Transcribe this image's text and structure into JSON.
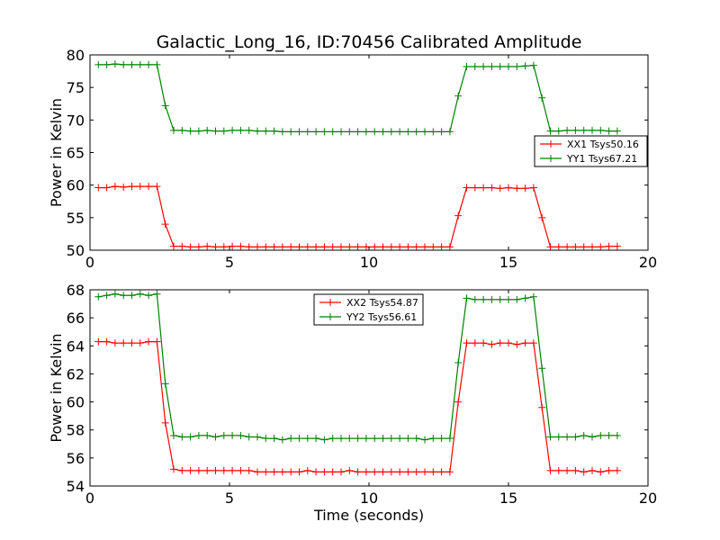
{
  "figure_title": "Galactic_Long_16, ID:70456 Calibrated Amplitude",
  "chart_data": [
    {
      "type": "line",
      "xlabel": "",
      "ylabel": "Power in Kelvin",
      "xlim": [
        0,
        20
      ],
      "ylim": [
        50,
        80
      ],
      "xticks": [
        0,
        5,
        10,
        15,
        20
      ],
      "yticks": [
        50,
        55,
        60,
        65,
        70,
        75,
        80
      ],
      "legend_position": "right",
      "x": [
        0.3,
        0.6,
        0.9,
        1.2,
        1.5,
        1.8,
        2.1,
        2.4,
        2.7,
        3.0,
        3.3,
        3.6,
        3.9,
        4.2,
        4.5,
        4.8,
        5.1,
        5.4,
        5.7,
        6.0,
        6.3,
        6.6,
        6.9,
        7.2,
        7.5,
        7.8,
        8.1,
        8.4,
        8.7,
        9.0,
        9.3,
        9.6,
        9.9,
        10.2,
        10.5,
        10.8,
        11.1,
        11.4,
        11.7,
        12.0,
        12.3,
        12.6,
        12.9,
        13.2,
        13.5,
        13.8,
        14.1,
        14.4,
        14.7,
        15.0,
        15.3,
        15.6,
        15.9,
        16.2,
        16.5,
        16.8,
        17.1,
        17.4,
        17.7,
        18.0,
        18.3,
        18.6,
        18.9
      ],
      "series": [
        {
          "name": "XX1 Tsys50.16",
          "color": "#ff0000",
          "values": [
            59.6,
            59.6,
            59.8,
            59.7,
            59.8,
            59.8,
            59.8,
            59.8,
            54.0,
            50.6,
            50.6,
            50.5,
            50.5,
            50.6,
            50.5,
            50.5,
            50.6,
            50.6,
            50.5,
            50.5,
            50.5,
            50.5,
            50.5,
            50.5,
            50.5,
            50.5,
            50.5,
            50.5,
            50.5,
            50.5,
            50.5,
            50.5,
            50.5,
            50.5,
            50.5,
            50.5,
            50.5,
            50.5,
            50.5,
            50.5,
            50.5,
            50.5,
            50.5,
            55.3,
            59.6,
            59.6,
            59.6,
            59.6,
            59.5,
            59.6,
            59.5,
            59.5,
            59.6,
            55.0,
            50.5,
            50.5,
            50.5,
            50.5,
            50.5,
            50.5,
            50.5,
            50.6,
            50.6
          ]
        },
        {
          "name": "YY1 Tsys67.21",
          "color": "#008000",
          "values": [
            78.5,
            78.5,
            78.6,
            78.5,
            78.5,
            78.5,
            78.5,
            78.5,
            72.2,
            68.4,
            68.4,
            68.3,
            68.3,
            68.4,
            68.3,
            68.3,
            68.4,
            68.4,
            68.4,
            68.3,
            68.3,
            68.3,
            68.2,
            68.2,
            68.2,
            68.2,
            68.2,
            68.2,
            68.2,
            68.2,
            68.2,
            68.2,
            68.2,
            68.2,
            68.2,
            68.2,
            68.2,
            68.2,
            68.2,
            68.2,
            68.2,
            68.2,
            68.2,
            73.7,
            78.2,
            78.2,
            78.2,
            78.2,
            78.2,
            78.2,
            78.2,
            78.3,
            78.4,
            73.4,
            68.3,
            68.3,
            68.4,
            68.4,
            68.4,
            68.4,
            68.4,
            68.3,
            68.3
          ]
        }
      ]
    },
    {
      "type": "line",
      "xlabel": "Time (seconds)",
      "ylabel": "Power in Kelvin",
      "xlim": [
        0,
        20
      ],
      "ylim": [
        54,
        68
      ],
      "xticks": [
        0,
        5,
        10,
        15,
        20
      ],
      "yticks": [
        54,
        56,
        58,
        60,
        62,
        64,
        66,
        68
      ],
      "legend_position": "upper center",
      "x": [
        0.3,
        0.6,
        0.9,
        1.2,
        1.5,
        1.8,
        2.1,
        2.4,
        2.7,
        3.0,
        3.3,
        3.6,
        3.9,
        4.2,
        4.5,
        4.8,
        5.1,
        5.4,
        5.7,
        6.0,
        6.3,
        6.6,
        6.9,
        7.2,
        7.5,
        7.8,
        8.1,
        8.4,
        8.7,
        9.0,
        9.3,
        9.6,
        9.9,
        10.2,
        10.5,
        10.8,
        11.1,
        11.4,
        11.7,
        12.0,
        12.3,
        12.6,
        12.9,
        13.2,
        13.5,
        13.8,
        14.1,
        14.4,
        14.7,
        15.0,
        15.3,
        15.6,
        15.9,
        16.2,
        16.5,
        16.8,
        17.1,
        17.4,
        17.7,
        18.0,
        18.3,
        18.6,
        18.9
      ],
      "series": [
        {
          "name": "XX2 Tsys54.87",
          "color": "#ff0000",
          "values": [
            64.3,
            64.3,
            64.2,
            64.2,
            64.2,
            64.2,
            64.3,
            64.3,
            58.5,
            55.2,
            55.1,
            55.1,
            55.1,
            55.1,
            55.1,
            55.1,
            55.1,
            55.1,
            55.1,
            55.0,
            55.0,
            55.0,
            55.0,
            55.0,
            55.0,
            55.1,
            55.0,
            55.0,
            55.0,
            55.0,
            55.1,
            55.0,
            55.0,
            55.0,
            55.0,
            55.0,
            55.0,
            55.0,
            55.0,
            55.0,
            55.0,
            55.0,
            55.0,
            60.0,
            64.2,
            64.2,
            64.2,
            64.1,
            64.2,
            64.2,
            64.1,
            64.2,
            64.2,
            59.6,
            55.1,
            55.1,
            55.1,
            55.1,
            55.0,
            55.1,
            55.0,
            55.1,
            55.1
          ]
        },
        {
          "name": "YY2 Tsys56.61",
          "color": "#008000",
          "values": [
            67.5,
            67.6,
            67.7,
            67.6,
            67.6,
            67.7,
            67.6,
            67.7,
            61.3,
            57.6,
            57.5,
            57.5,
            57.6,
            57.6,
            57.5,
            57.6,
            57.6,
            57.6,
            57.5,
            57.5,
            57.4,
            57.4,
            57.3,
            57.4,
            57.4,
            57.4,
            57.4,
            57.3,
            57.4,
            57.4,
            57.4,
            57.4,
            57.4,
            57.4,
            57.4,
            57.4,
            57.4,
            57.4,
            57.4,
            57.3,
            57.4,
            57.4,
            57.4,
            62.8,
            67.4,
            67.3,
            67.3,
            67.3,
            67.3,
            67.3,
            67.3,
            67.4,
            67.5,
            62.4,
            57.5,
            57.5,
            57.5,
            57.5,
            57.6,
            57.5,
            57.6,
            57.6,
            57.6
          ]
        }
      ]
    }
  ]
}
